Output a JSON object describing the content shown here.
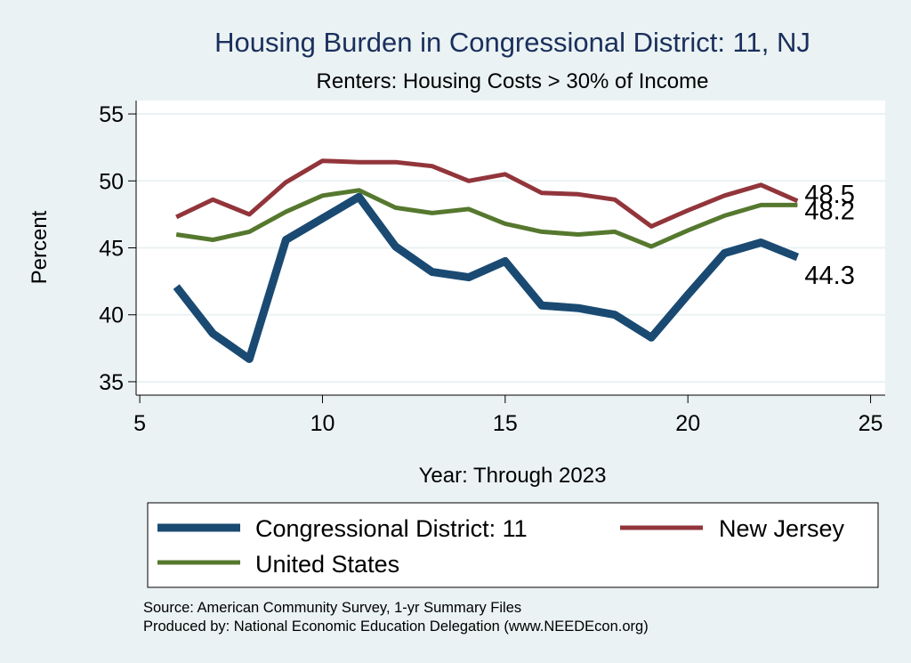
{
  "chart_data": {
    "type": "line",
    "title": "Housing Burden in Congressional District:  11, NJ",
    "subtitle": "Renters: Housing Costs > 30% of Income",
    "xlabel": "Year: Through 2023",
    "ylabel": "Percent",
    "xlim": [
      4.9,
      25.4
    ],
    "ylim": [
      34,
      56
    ],
    "xticks": [
      5,
      10,
      15,
      20,
      25
    ],
    "yticks": [
      35,
      40,
      45,
      50,
      55
    ],
    "grid": "horizontal",
    "x": [
      6,
      7,
      8,
      9,
      10,
      11,
      12,
      13,
      14,
      15,
      16,
      17,
      18,
      19,
      20,
      21,
      22,
      23
    ],
    "series": [
      {
        "name": "Congressional District:  11",
        "color": "#1a4a72",
        "values": [
          42.1,
          38.6,
          36.7,
          45.6,
          47.2,
          48.8,
          45.1,
          43.2,
          42.8,
          44.0,
          40.7,
          40.5,
          40.0,
          38.3,
          41.5,
          44.6,
          45.4,
          44.3
        ],
        "end_label": "44.3"
      },
      {
        "name": "New Jersey",
        "color": "#92353b",
        "values": [
          47.3,
          48.6,
          47.5,
          49.9,
          51.5,
          51.4,
          51.4,
          51.1,
          50.0,
          50.5,
          49.1,
          49.0,
          48.6,
          46.6,
          47.8,
          48.9,
          49.7,
          48.5
        ],
        "end_label": "48.5"
      },
      {
        "name": "United States",
        "color": "#55782e",
        "values": [
          46.0,
          45.6,
          46.2,
          47.7,
          48.9,
          49.3,
          48.0,
          47.6,
          47.9,
          46.8,
          46.2,
          46.0,
          46.2,
          45.1,
          46.3,
          47.4,
          48.2,
          48.2
        ],
        "end_label": "48.2"
      }
    ],
    "legend": {
      "position": "bottom",
      "entries": [
        "Congressional District:  11",
        "New Jersey",
        "United States"
      ]
    }
  },
  "footer": {
    "source": "Source: American Community Survey, 1-yr Summary Files",
    "produced_by": "Produced by: National Economic Education Delegation (www.NEEDEcon.org)"
  }
}
